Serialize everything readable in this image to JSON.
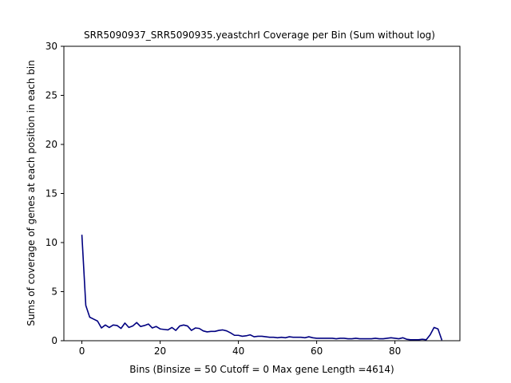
{
  "chart_data": {
    "type": "line",
    "title": "SRR5090937_SRR5090935.yeastchrI Coverage per Bin (Sum without log)",
    "xlabel": "Bins  (Binsize = 50 Cutoff = 0 Max gene Length =4614)",
    "ylabel": "Sums of coverage of genes at each position in each bin",
    "xlim": [
      -4.6,
      96.6
    ],
    "ylim": [
      0,
      30
    ],
    "xticks": [
      0,
      20,
      40,
      60,
      80
    ],
    "yticks": [
      0,
      5,
      10,
      15,
      20,
      25,
      30
    ],
    "grid": false,
    "line_color": "#000080",
    "series": [
      {
        "x": [
          0,
          1,
          2,
          3,
          4,
          5,
          6,
          7,
          8,
          9,
          10,
          11,
          12,
          13,
          14,
          15,
          16,
          17,
          18,
          19,
          20,
          21,
          22,
          23,
          24,
          25,
          26,
          27,
          28,
          29,
          30,
          31,
          32,
          33,
          34,
          35,
          36,
          37,
          38,
          39,
          40,
          41,
          42,
          43,
          44,
          45,
          46,
          47,
          48,
          49,
          50,
          51,
          52,
          53,
          54,
          55,
          56,
          57,
          58,
          59,
          60,
          61,
          62,
          63,
          64,
          65,
          66,
          67,
          68,
          69,
          70,
          71,
          72,
          73,
          74,
          75,
          76,
          77,
          78,
          79,
          80,
          81,
          82,
          83,
          84,
          85,
          86,
          87,
          88,
          89,
          90,
          91,
          92
        ],
        "y": [
          10.8,
          3.6,
          2.4,
          2.2,
          2.0,
          1.3,
          1.6,
          1.35,
          1.6,
          1.55,
          1.25,
          1.8,
          1.35,
          1.5,
          1.85,
          1.45,
          1.55,
          1.7,
          1.3,
          1.45,
          1.2,
          1.15,
          1.1,
          1.35,
          1.05,
          1.5,
          1.6,
          1.5,
          1.05,
          1.3,
          1.25,
          1.0,
          0.9,
          0.95,
          0.95,
          1.05,
          1.1,
          1.0,
          0.8,
          0.55,
          0.55,
          0.45,
          0.5,
          0.6,
          0.4,
          0.45,
          0.45,
          0.4,
          0.35,
          0.35,
          0.3,
          0.35,
          0.3,
          0.4,
          0.35,
          0.35,
          0.35,
          0.3,
          0.4,
          0.3,
          0.25,
          0.25,
          0.25,
          0.25,
          0.25,
          0.2,
          0.25,
          0.25,
          0.2,
          0.2,
          0.25,
          0.2,
          0.2,
          0.2,
          0.2,
          0.25,
          0.2,
          0.2,
          0.25,
          0.3,
          0.25,
          0.2,
          0.3,
          0.15,
          0.1,
          0.1,
          0.1,
          0.15,
          0.1,
          0.6,
          1.35,
          1.2,
          0.05
        ]
      }
    ]
  }
}
